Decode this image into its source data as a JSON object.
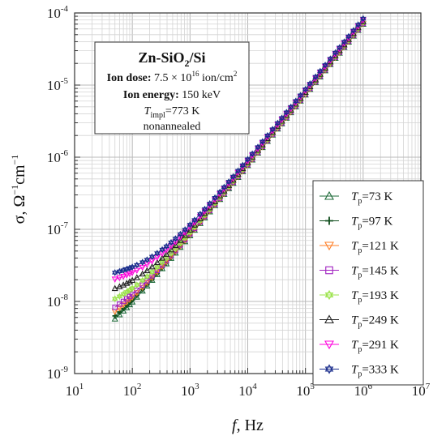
{
  "chart_data": {
    "type": "scatter",
    "title": "",
    "xlabel": "f, Hz",
    "ylabel": "σ, Ω⁻¹cm⁻¹",
    "xscale": "log",
    "yscale": "log",
    "xlim": [
      10,
      10000000
    ],
    "ylim": [
      1e-09,
      0.0001
    ],
    "grid": true,
    "legend_position": "bottom-right",
    "x_tick_labels": [
      {
        "base": "10",
        "exp": "1"
      },
      {
        "base": "10",
        "exp": "2"
      },
      {
        "base": "10",
        "exp": "3"
      },
      {
        "base": "10",
        "exp": "4"
      },
      {
        "base": "10",
        "exp": "5"
      },
      {
        "base": "10",
        "exp": "6"
      },
      {
        "base": "10",
        "exp": "7"
      }
    ],
    "y_tick_labels": [
      {
        "base": "10",
        "exp": "-9"
      },
      {
        "base": "10",
        "exp": "-8"
      },
      {
        "base": "10",
        "exp": "-7"
      },
      {
        "base": "10",
        "exp": "-6"
      },
      {
        "base": "10",
        "exp": "-5"
      },
      {
        "base": "10",
        "exp": "-4"
      }
    ],
    "x_label_parts": {
      "italic": "f",
      "rest": ", Hz"
    },
    "y_label_parts": {
      "main": "σ, Ω",
      "sup1": "−1",
      "mid": "cm",
      "sup2": "−1"
    },
    "info_box": {
      "title_main": "Zn-SiO",
      "title_sub": "2",
      "title_end": "/Si",
      "dose_label": "Ion dose:",
      "dose_value": "7.5 × 10",
      "dose_exp": "16",
      "dose_unit": " ion/cm",
      "dose_unit_exp": "2",
      "energy_label": "Ion energy:",
      "energy_value": " 150 keV",
      "timpl_T": "T",
      "timpl_sub": "impl",
      "timpl_value": "=773 K",
      "state": "nonannealed"
    },
    "x_frequencies": [
      50,
      60,
      70,
      80,
      90,
      100,
      120,
      150,
      180,
      220,
      270,
      330,
      390,
      470,
      560,
      680,
      820,
      1000,
      1200,
      1500,
      1800,
      2200,
      2700,
      3300,
      3900,
      4700,
      5600,
      6800,
      8200,
      10000,
      12000,
      15000,
      18000,
      22000,
      27000,
      33000,
      39000,
      47000,
      56000,
      68000,
      82000,
      100000,
      120000,
      150000,
      180000,
      220000,
      270000,
      330000,
      390000,
      470000,
      560000,
      680000,
      820000,
      1000000
    ],
    "model": "sigma = A + B * f^0.98 (fitted to each curve's low-frequency plateau and high-frequency end value)",
    "series": [
      {
        "name": "T",
        "sub": "p",
        "label": "=73 K",
        "marker": "triangle-up",
        "color": "#1f6b3a",
        "A": 1.45e-09,
        "B": 9.2e-11
      },
      {
        "name": "T",
        "sub": "p",
        "label": "=97 K",
        "marker": "plus",
        "color": "#0f4d1c",
        "A": 2e-09,
        "B": 9.3e-11
      },
      {
        "name": "T",
        "sub": "p",
        "label": "=121 K",
        "marker": "triangle-down",
        "color": "#ff7f27",
        "A": 2.9e-09,
        "B": 9.4e-11
      },
      {
        "name": "T",
        "sub": "p",
        "label": "=145 K",
        "marker": "square",
        "color": "#a020c0",
        "A": 3.9e-09,
        "B": 9.5e-11
      },
      {
        "name": "T",
        "sub": "p",
        "label": "=193 K",
        "marker": "star",
        "color": "#9be34a",
        "A": 6.4e-09,
        "B": 9.7e-11
      },
      {
        "name": "T",
        "sub": "p",
        "label": "=249 K",
        "marker": "triangle-up",
        "color": "#222222",
        "A": 1.05e-08,
        "B": 1e-10
      },
      {
        "name": "T",
        "sub": "p",
        "label": "=291 K",
        "marker": "triangle-down",
        "color": "#ff00dd",
        "A": 1.55e-08,
        "B": 1.05e-10
      },
      {
        "name": "T",
        "sub": "p",
        "label": "=333 K",
        "marker": "star",
        "color": "#1a2d8c",
        "A": 2e-08,
        "B": 1.1e-10
      }
    ]
  }
}
